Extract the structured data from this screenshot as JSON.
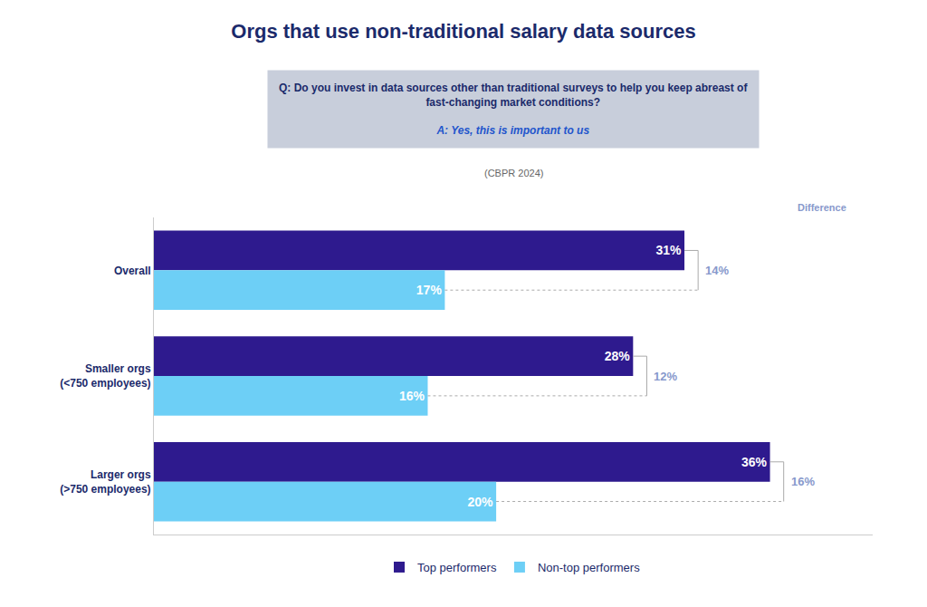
{
  "chart_data": {
    "type": "bar",
    "orientation": "horizontal",
    "title": "Orgs that use non-traditional salary data sources",
    "annotations": [
      "Q: Do you invest in data sources other than traditional surveys to help you keep abreast of\nfast-changing market conditions?",
      "A: Yes, this is important to us",
      "(CBPR 2024)",
      "Difference"
    ],
    "categories": [
      "Overall",
      "Smaller orgs\n(<750 employees)",
      "Larger orgs\n(>750 employees)"
    ],
    "series": [
      {
        "name": "Top performers",
        "color": "#2E1A8E",
        "values": [
          31,
          28,
          36
        ],
        "value_labels": [
          "31%",
          "28%",
          "36%"
        ]
      },
      {
        "name": "Non-top performers",
        "color": "#6DCFF6",
        "values": [
          17,
          16,
          20
        ],
        "value_labels": [
          "17%",
          "16%",
          "20%"
        ]
      }
    ],
    "differences": [
      14,
      12,
      16
    ],
    "difference_labels": [
      "14%",
      "12%",
      "16%"
    ],
    "xlim": [
      0,
      42
    ],
    "tick_labels": "y",
    "grid": false,
    "legend": "bottom",
    "data_labels": true
  }
}
